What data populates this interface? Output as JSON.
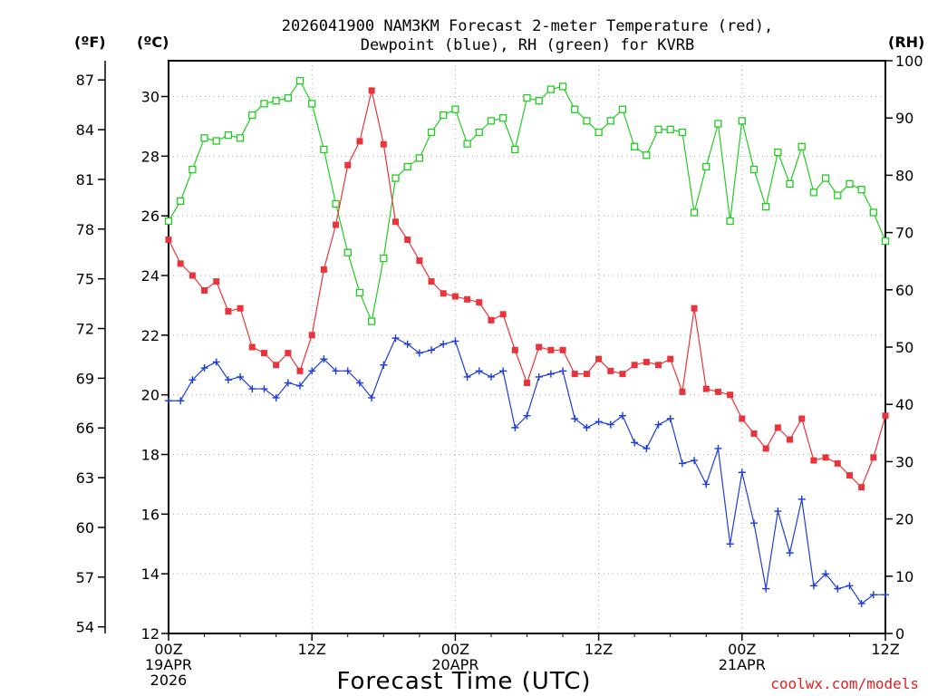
{
  "title_line1": "2026041900 NAM3KM Forecast 2-meter Temperature (red),",
  "title_line2": "Dewpoint (blue), RH (green) for KVRB",
  "units": {
    "fahrenheit": "(ºF)",
    "celsius": "(ºC)",
    "rh": "(RH)"
  },
  "x_axis_title": "Forecast Time (UTC)",
  "credit": "coolwx.com/models",
  "colors": {
    "temperature": "#e8343a",
    "dewpoint": "#1e3ed8",
    "rh": "#22cc22",
    "credit": "#e02020"
  },
  "chart_data": {
    "type": "line",
    "x_unit": "forecast_hour",
    "x_range": [
      0,
      60
    ],
    "x_ticks": [
      {
        "hour": 0,
        "lines": [
          "00Z",
          "19APR",
          "2026"
        ]
      },
      {
        "hour": 12,
        "lines": [
          "12Z"
        ]
      },
      {
        "hour": 24,
        "lines": [
          "00Z",
          "20APR"
        ]
      },
      {
        "hour": 36,
        "lines": [
          "12Z"
        ]
      },
      {
        "hour": 48,
        "lines": [
          "00Z",
          "21APR"
        ]
      },
      {
        "hour": 60,
        "lines": [
          "12Z"
        ]
      }
    ],
    "celsius_axis": {
      "range": [
        12,
        31.2
      ],
      "ticks": [
        12,
        14,
        16,
        18,
        20,
        22,
        24,
        26,
        28,
        30
      ]
    },
    "fahrenheit_ticks": [
      54,
      57,
      60,
      63,
      66,
      69,
      72,
      75,
      78,
      81,
      84,
      87
    ],
    "rh_axis": {
      "range": [
        0,
        100
      ],
      "ticks": [
        0,
        10,
        20,
        30,
        40,
        50,
        60,
        70,
        80,
        90,
        100
      ]
    },
    "series": [
      {
        "name": "Temperature",
        "unit": "C",
        "marker": "filled-square",
        "values": [
          25.2,
          24.4,
          24.0,
          23.5,
          23.8,
          22.8,
          22.9,
          21.6,
          21.4,
          21.0,
          21.4,
          20.8,
          22.0,
          24.2,
          25.7,
          27.7,
          28.5,
          30.2,
          28.4,
          25.8,
          25.2,
          24.5,
          23.8,
          23.4,
          23.3,
          23.2,
          23.1,
          22.5,
          22.7,
          21.5,
          20.4,
          21.6,
          21.5,
          21.5,
          20.7,
          20.7,
          21.2,
          20.8,
          20.7,
          21.0,
          21.1,
          21.0,
          21.2,
          20.1,
          22.9,
          20.2,
          20.1,
          20.0,
          19.2,
          18.7,
          18.2,
          18.9,
          18.5,
          19.2,
          17.8,
          17.9,
          17.7,
          17.3,
          16.9,
          17.9,
          19.3
        ]
      },
      {
        "name": "Dewpoint",
        "unit": "C",
        "marker": "plus",
        "values": [
          19.8,
          19.8,
          20.5,
          20.9,
          21.1,
          20.5,
          20.6,
          20.2,
          20.2,
          19.9,
          20.4,
          20.3,
          20.8,
          21.2,
          20.8,
          20.8,
          20.4,
          19.9,
          21.0,
          21.9,
          21.7,
          21.4,
          21.5,
          21.7,
          21.8,
          20.6,
          20.8,
          20.6,
          20.8,
          18.9,
          19.3,
          20.6,
          20.7,
          20.8,
          19.2,
          18.9,
          19.1,
          19.0,
          19.3,
          18.4,
          18.2,
          19.0,
          19.2,
          17.7,
          17.8,
          17.0,
          18.2,
          15.0,
          17.4,
          15.7,
          13.5,
          16.1,
          14.7,
          16.5,
          13.6,
          14.0,
          13.5,
          13.6,
          13.0,
          13.3,
          13.3
        ]
      },
      {
        "name": "RH",
        "unit": "percent",
        "marker": "open-square",
        "values": [
          72,
          75.5,
          81,
          86.5,
          86,
          87,
          86.5,
          90.5,
          92.5,
          93,
          93.5,
          96.5,
          92.5,
          84.5,
          75,
          66.5,
          59.5,
          54.5,
          65.5,
          79.5,
          81.5,
          83,
          87.5,
          90.5,
          91.5,
          85.5,
          87.5,
          89.5,
          90,
          84.5,
          93.5,
          93,
          95,
          95.5,
          91.5,
          89.5,
          87.5,
          89.5,
          91.5,
          85,
          83.5,
          88,
          88,
          87.5,
          73.5,
          81.5,
          89,
          72,
          89.5,
          81,
          74.5,
          84,
          78.5,
          85,
          77,
          79.5,
          76.5,
          78.5,
          77.5,
          73.5,
          68.5
        ]
      }
    ]
  }
}
